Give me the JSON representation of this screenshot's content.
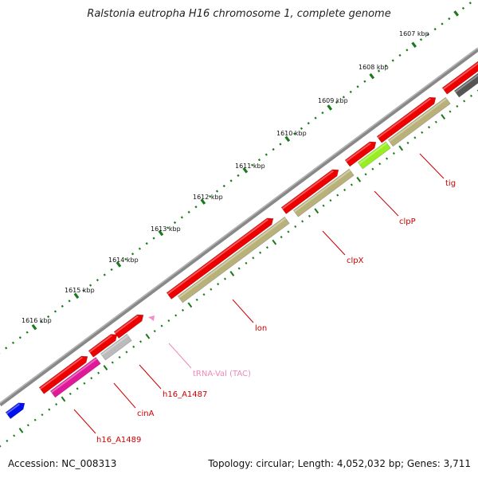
{
  "title": "Ralstonia eutropha H16 chromosome 1, complete genome",
  "footer": {
    "accession": "Accession: NC_008313",
    "stats": "Topology: circular; Length: 4,052,032 bp; Genes: 3,711"
  },
  "ruler_labels": [
    "1607 kbp",
    "1608 kbp",
    "1609 kbp",
    "1610 kbp",
    "1611 kbp",
    "1612 kbp",
    "1613 kbp",
    "1614 kbp",
    "1615 kbp",
    "1616 kbp"
  ],
  "gene_labels": {
    "tig": "tig",
    "clpP": "clpP",
    "clpX": "clpX",
    "lon": "lon",
    "trna": "tRNA-Val (TAC)",
    "h16_A1487": "h16_A1487",
    "cinA": "cinA",
    "h16_A1489": "h16_A1489"
  },
  "colors": {
    "backbone": "#777777",
    "ruler_ticks": "#1a7a1a",
    "gene_forward": "#ee0000",
    "cds": "#b8b27a",
    "cds_pseudo": "#bbbbbb",
    "cds_magenta": "#e0199a",
    "cds_green": "#99ee22",
    "trna": "#f090c8",
    "blue_feature": "#0011ee",
    "dark_feature": "#555555",
    "label_red": "#cc0000",
    "label_pink": "#ee77bb"
  }
}
